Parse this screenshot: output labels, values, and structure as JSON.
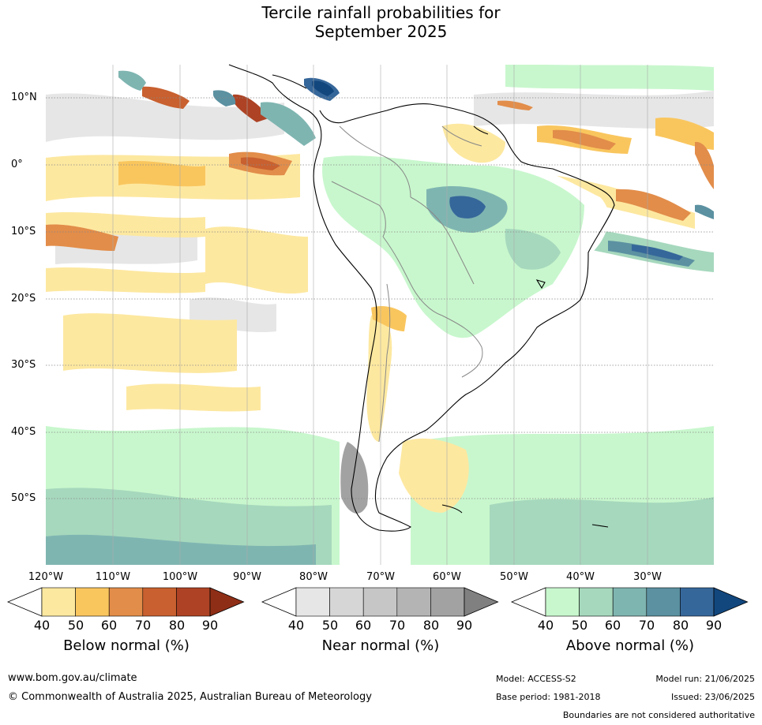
{
  "title_line1": "Tercile rainfall probabilities for",
  "title_line2": "September 2025",
  "lat_labels": [
    "10°N",
    "0°",
    "10°S",
    "20°S",
    "30°S",
    "40°S",
    "50°S"
  ],
  "lon_labels": [
    "120°W",
    "110°W",
    "100°W",
    "90°W",
    "80°W",
    "70°W",
    "60°W",
    "50°W",
    "40°W",
    "30°W"
  ],
  "legends": {
    "below": {
      "label": "Below normal (%)",
      "ticks": [
        "40",
        "50",
        "60",
        "70",
        "80",
        "90"
      ],
      "colors": [
        "#ffffff",
        "#fde8a0",
        "#f9c65e",
        "#e28d4a",
        "#c8602f",
        "#ad4324",
        "#8f2e16"
      ]
    },
    "near": {
      "label": "Near normal (%)",
      "ticks": [
        "40",
        "50",
        "60",
        "70",
        "80",
        "90"
      ],
      "colors": [
        "#ffffff",
        "#e6e6e6",
        "#d6d6d6",
        "#c6c6c6",
        "#b4b4b4",
        "#a2a2a2",
        "#808080"
      ]
    },
    "above": {
      "label": "Above normal (%)",
      "ticks": [
        "40",
        "50",
        "60",
        "70",
        "80",
        "90"
      ],
      "colors": [
        "#ffffff",
        "#c8f7cd",
        "#a6d8bd",
        "#7fb5b1",
        "#5b91a1",
        "#36679a",
        "#12477e"
      ]
    }
  },
  "footer": {
    "url": "www.bom.gov.au/climate",
    "copyright": "© Commonwealth of Australia 2025, Australian Bureau of Meteorology",
    "model": "Model: ACCESS-S2",
    "base_period": "Base period: 1981-2018",
    "model_run": "Model run: 21/06/2025",
    "issued": "Issued: 23/06/2025",
    "disclaimer": "Boundaries are not considered authoritative"
  }
}
